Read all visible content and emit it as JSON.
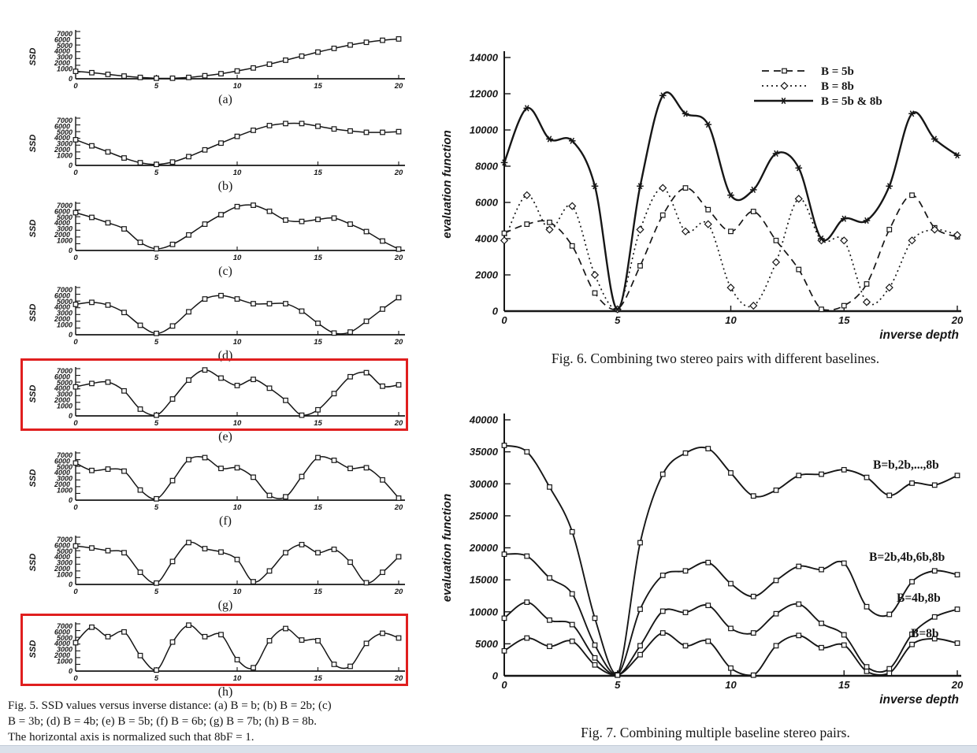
{
  "page": {
    "ink_color": "#161616",
    "highlight_color": "#e01f1f",
    "background": "#ffffff",
    "bottom_bar_color": "#dae1ea"
  },
  "chart_data": [
    {
      "id": "fig5",
      "type": "line",
      "title": "SSD values versus inverse distance",
      "ylabel": "SSD",
      "xlabel": "",
      "ylim": [
        0,
        7000
      ],
      "xlim": [
        0,
        20
      ],
      "x_ticks": [
        "0",
        "5",
        "10",
        "15",
        "20"
      ],
      "y_tick_labels": [
        "7000",
        "6000",
        "5000",
        "4000",
        "3000",
        "2000",
        "1000"
      ],
      "y_zero_label": "0",
      "grid": false,
      "marker": "square",
      "x": [
        0,
        1,
        2,
        3,
        4,
        5,
        6,
        7,
        8,
        9,
        10,
        11,
        12,
        13,
        14,
        15,
        16,
        17,
        18,
        19,
        20
      ],
      "subplots": [
        {
          "label": "(a)",
          "highlighted": false,
          "values": [
            1100,
            900,
            650,
            400,
            200,
            80,
            80,
            200,
            450,
            750,
            1150,
            1600,
            2150,
            2750,
            3350,
            3950,
            4500,
            5000,
            5400,
            5700,
            5900
          ]
        },
        {
          "label": "(b)",
          "highlighted": false,
          "values": [
            3800,
            2900,
            2000,
            1100,
            400,
            150,
            500,
            1300,
            2300,
            3300,
            4300,
            5200,
            5900,
            6200,
            6200,
            5800,
            5400,
            5100,
            4900,
            4900,
            5000
          ]
        },
        {
          "label": "(c)",
          "highlighted": false,
          "values": [
            5600,
            4900,
            4100,
            3200,
            1200,
            250,
            900,
            2300,
            3900,
            5300,
            6500,
            6700,
            5800,
            4500,
            4300,
            4600,
            4800,
            3900,
            2800,
            1400,
            200
          ]
        },
        {
          "label": "(d)",
          "highlighted": false,
          "values": [
            4500,
            4800,
            4400,
            3300,
            1400,
            200,
            1300,
            3400,
            5300,
            5800,
            5300,
            4600,
            4600,
            4600,
            3500,
            1700,
            250,
            400,
            2000,
            3800,
            5500
          ]
        },
        {
          "label": "(e)",
          "highlighted": true,
          "values": [
            4300,
            4800,
            5000,
            3700,
            1000,
            100,
            2500,
            5300,
            6800,
            5600,
            4500,
            5400,
            4100,
            2300,
            100,
            900,
            3300,
            5800,
            6400,
            4400,
            4600
          ]
        },
        {
          "label": "(f)",
          "highlighted": false,
          "values": [
            5500,
            4400,
            4600,
            4300,
            1500,
            200,
            2900,
            6000,
            6300,
            4700,
            4800,
            3400,
            700,
            500,
            3500,
            6300,
            5900,
            4700,
            4800,
            3000,
            300
          ]
        },
        {
          "label": "(g)",
          "highlighted": false,
          "values": [
            5700,
            5400,
            5000,
            4700,
            1800,
            200,
            3400,
            6200,
            5300,
            4800,
            3700,
            400,
            2000,
            4700,
            5900,
            4700,
            5200,
            3300,
            250,
            1800,
            4100
          ]
        },
        {
          "label": "(h)",
          "highlighted": true,
          "values": [
            4200,
            6500,
            5100,
            5800,
            2300,
            150,
            4300,
            6800,
            5100,
            5400,
            1700,
            500,
            4500,
            6300,
            4600,
            4500,
            1000,
            700,
            4100,
            5600,
            4900
          ]
        }
      ],
      "caption_lines": [
        "Fig. 5.   SSD values versus inverse distance: (a) B = b; (b) B = 2b; (c)",
        "B = 3b; (d) B = 4b; (e) B = 5b; (f) B = 6b; (g) B = 7b; (h) B = 8b.",
        "The horizontal axis is normalized such that 8bF = 1."
      ]
    },
    {
      "id": "fig6",
      "type": "line",
      "caption": "Fig. 6.   Combining two stereo pairs with different baselines.",
      "ylabel": "evaluation function",
      "xlabel": "inverse depth",
      "ylim": [
        0,
        14000
      ],
      "xlim": [
        0,
        20
      ],
      "y_ticks": [
        "0",
        "2000",
        "4000",
        "6000",
        "8000",
        "10000",
        "12000",
        "14000"
      ],
      "x_ticks": [
        "0",
        "5",
        "10",
        "15",
        "20"
      ],
      "grid": false,
      "legend_position": "top-right",
      "x": [
        0,
        1,
        2,
        3,
        4,
        5,
        6,
        7,
        8,
        9,
        10,
        11,
        12,
        13,
        14,
        15,
        16,
        17,
        18,
        19,
        20
      ],
      "series": [
        {
          "name": "B = 5b",
          "line": "dashed",
          "marker": "square",
          "values": [
            4300,
            4800,
            4900,
            3600,
            1000,
            100,
            2500,
            5300,
            6800,
            5600,
            4400,
            5500,
            3900,
            2300,
            100,
            300,
            1500,
            4500,
            6400,
            4600,
            4100
          ]
        },
        {
          "name": "B = 8b",
          "line": "dotted",
          "marker": "diamond",
          "values": [
            3900,
            6400,
            4500,
            5800,
            2000,
            100,
            4500,
            6800,
            4400,
            4800,
            1300,
            300,
            2700,
            6200,
            3900,
            3900,
            500,
            1300,
            3900,
            4500,
            4200
          ]
        },
        {
          "name": "B = 5b & 8b",
          "line": "solid",
          "marker": "asterisk",
          "values": [
            8200,
            11200,
            9500,
            9400,
            6900,
            100,
            6900,
            11900,
            10900,
            10300,
            6400,
            6700,
            8700,
            7900,
            4000,
            5100,
            5000,
            6900,
            10900,
            9500,
            8600
          ]
        }
      ]
    },
    {
      "id": "fig7",
      "type": "line",
      "caption": "Fig. 7.   Combining multiple baseline stereo pairs.",
      "ylabel": "evaluation function",
      "xlabel": "inverse depth",
      "ylim": [
        0,
        40000
      ],
      "xlim": [
        0,
        20
      ],
      "y_ticks": [
        "0",
        "5000",
        "10000",
        "15000",
        "20000",
        "25000",
        "30000",
        "35000",
        "40000"
      ],
      "x_ticks": [
        "0",
        "5",
        "10",
        "15",
        "20"
      ],
      "grid": false,
      "x": [
        0,
        1,
        2,
        3,
        4,
        5,
        6,
        7,
        8,
        9,
        10,
        11,
        12,
        13,
        14,
        15,
        16,
        17,
        18,
        19,
        20
      ],
      "series": [
        {
          "name": "B=b,2b,...,8b",
          "line": "solid",
          "marker": "square",
          "values": [
            36000,
            35000,
            29500,
            22500,
            9000,
            200,
            20800,
            31500,
            34800,
            35500,
            31700,
            28100,
            29000,
            31300,
            31500,
            32200,
            31000,
            28200,
            30100,
            29800,
            31300
          ]
        },
        {
          "name": "B=2b,4b,6b,8b",
          "line": "solid",
          "marker": "square",
          "values": [
            19000,
            18700,
            15300,
            12800,
            4800,
            150,
            10400,
            15700,
            16400,
            17700,
            14400,
            12400,
            14900,
            17100,
            16600,
            17600,
            10800,
            9600,
            14700,
            16400,
            15800
          ]
        },
        {
          "name": "B=4b,8b",
          "line": "solid",
          "marker": "square",
          "values": [
            9000,
            11500,
            8700,
            8000,
            2800,
            100,
            4700,
            10100,
            9900,
            11000,
            7400,
            6700,
            9700,
            11200,
            8200,
            6400,
            1400,
            1100,
            6500,
            9200,
            10400
          ]
        },
        {
          "name": "B=8b",
          "line": "solid",
          "marker": "square",
          "values": [
            3900,
            5900,
            4600,
            5400,
            1700,
            100,
            3300,
            6700,
            4700,
            5400,
            1200,
            100,
            4700,
            6300,
            4400,
            4800,
            700,
            400,
            4900,
            5800,
            5100
          ]
        }
      ]
    }
  ]
}
